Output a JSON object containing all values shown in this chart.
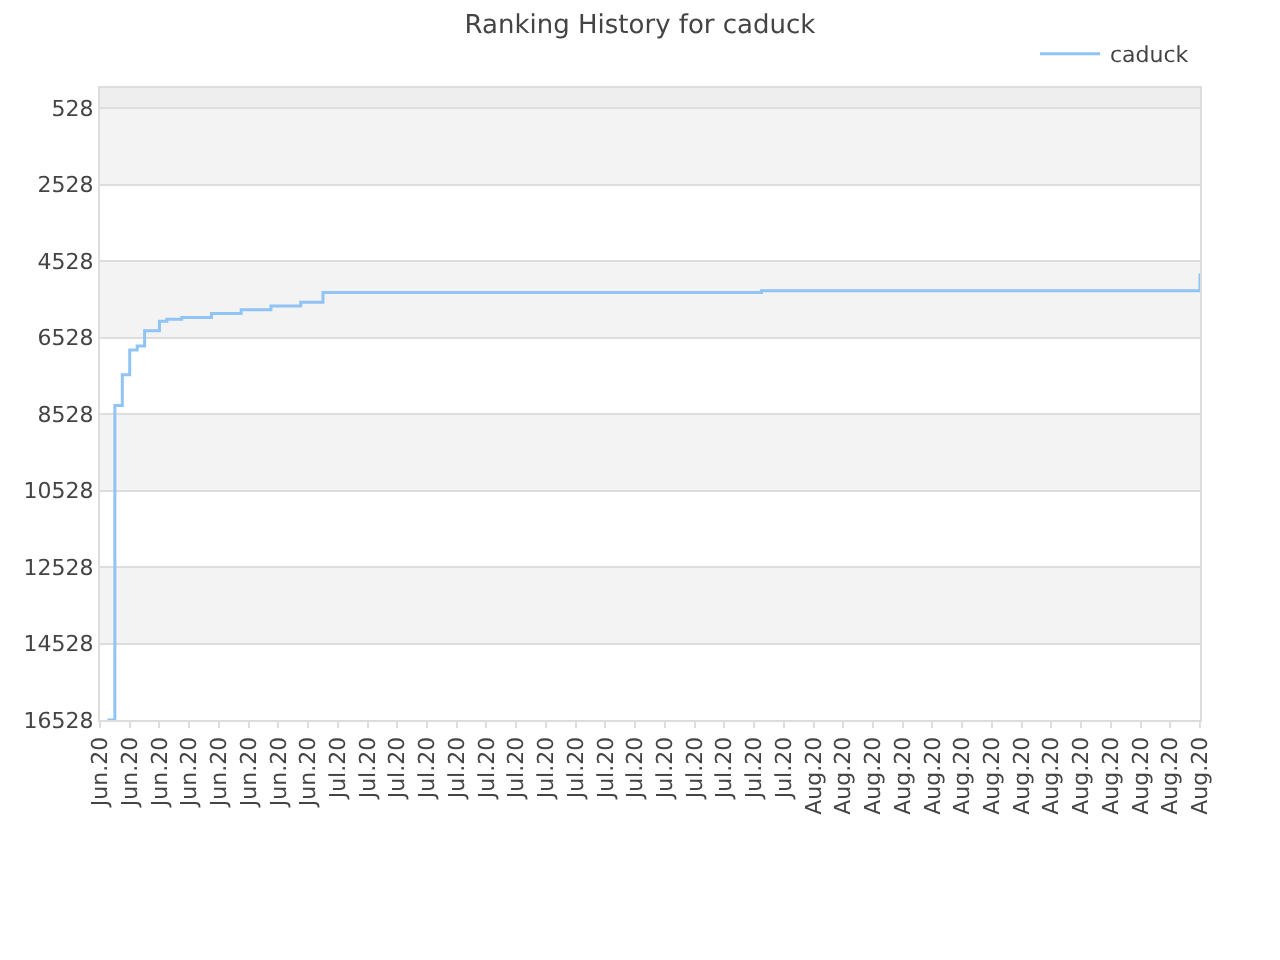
{
  "chart_data": {
    "type": "step",
    "title": "Ranking History for caduck",
    "categories": [
      "Jun.20",
      null,
      null,
      null,
      "Jun.20",
      null,
      null,
      null,
      "Jun.20",
      null,
      null,
      null,
      "Jun.20",
      null,
      null,
      null,
      "Jun.20",
      null,
      null,
      null,
      "Jun.20",
      null,
      null,
      null,
      "Jun.20",
      null,
      null,
      null,
      "Jun.20",
      null,
      null,
      null,
      "Jul.20",
      null,
      null,
      null,
      "Jul.20",
      null,
      null,
      null,
      "Jul.20",
      null,
      null,
      null,
      "Jul.20",
      null,
      null,
      null,
      "Jul.20",
      null,
      null,
      null,
      "Jul.20",
      null,
      null,
      null,
      "Jul.20",
      null,
      null,
      null,
      "Jul.20",
      null,
      null,
      null,
      "Jul.20",
      null,
      null,
      null,
      "Jul.20",
      null,
      null,
      null,
      "Jul.20",
      null,
      null,
      null,
      "Jul.20",
      null,
      null,
      null,
      "Jul.20",
      null,
      null,
      null,
      "Jul.20",
      null,
      null,
      null,
      "Jul.20",
      null,
      null,
      null,
      "Jul.20",
      null,
      null,
      null,
      "Aug.20",
      null,
      null,
      null,
      "Aug.20",
      null,
      null,
      null,
      "Aug.20",
      null,
      null,
      null,
      "Aug.20",
      null,
      null,
      null,
      "Aug.20",
      null,
      null,
      null,
      "Aug.20",
      null,
      null,
      null,
      "Aug.20",
      null,
      null,
      null,
      "Aug.20",
      null,
      null,
      null,
      "Aug.20",
      null,
      null,
      null,
      "Aug.20",
      null,
      null,
      null,
      "Aug.20",
      null,
      null,
      null,
      "Aug.20",
      null,
      null,
      null,
      "Aug.20",
      null,
      null,
      null,
      "Aug.20"
    ],
    "series": [
      {
        "name": "caduck",
        "color": "#90c4f4",
        "values": [
          null,
          16528,
          8300,
          7500,
          6850,
          6750,
          6350,
          6350,
          6100,
          6050,
          6050,
          6000,
          6000,
          6000,
          6000,
          5900,
          5900,
          5900,
          5900,
          5800,
          5800,
          5800,
          5800,
          5700,
          5700,
          5700,
          5700,
          5600,
          5600,
          5600,
          5350,
          5350,
          5350,
          5350,
          5350,
          5350,
          5350,
          5350,
          5350,
          5350,
          5350,
          5350,
          5350,
          5350,
          5350,
          5350,
          5350,
          5350,
          5350,
          5350,
          5350,
          5350,
          5350,
          5350,
          5350,
          5350,
          5350,
          5350,
          5350,
          5350,
          5350,
          5350,
          5350,
          5350,
          5350,
          5350,
          5350,
          5350,
          5350,
          5350,
          5350,
          5350,
          5350,
          5350,
          5350,
          5350,
          5350,
          5350,
          5350,
          5350,
          5350,
          5350,
          5350,
          5350,
          5350,
          5350,
          5350,
          5350,
          5350,
          5300,
          5300,
          5300,
          5300,
          5300,
          5300,
          5300,
          5300,
          5300,
          5300,
          5300,
          5300,
          5300,
          5300,
          5300,
          5300,
          5300,
          5300,
          5300,
          5300,
          5300,
          5300,
          5300,
          5300,
          5300,
          5300,
          5300,
          5300,
          5300,
          5300,
          5300,
          5300,
          5300,
          5300,
          5300,
          5300,
          5300,
          5300,
          5300,
          5300,
          5300,
          5300,
          5300,
          5300,
          5300,
          5300,
          5300,
          5300,
          5300,
          5300,
          5300,
          5300,
          5300,
          5300,
          5300,
          5300,
          5300,
          5300,
          5300,
          4850
        ]
      }
    ],
    "ylim": [
      16528,
      0
    ],
    "yticks": [
      528,
      2528,
      4528,
      6528,
      8528,
      10528,
      12528,
      14528,
      16528
    ],
    "bands": [
      {
        "axis": "y",
        "from": 0,
        "to": 528,
        "color": "#eeeeee"
      },
      {
        "axis": "y",
        "from": 528,
        "to": 2528,
        "color": "#f3f3f3"
      },
      {
        "axis": "y",
        "from": 4528,
        "to": 6528,
        "color": "#f3f3f3"
      },
      {
        "axis": "y",
        "from": 8528,
        "to": 10528,
        "color": "#f3f3f3"
      },
      {
        "axis": "y",
        "from": 12528,
        "to": 14528,
        "color": "#f3f3f3"
      }
    ],
    "grid": "y",
    "legend": "top right",
    "marker": "none",
    "line_style": "solid"
  }
}
